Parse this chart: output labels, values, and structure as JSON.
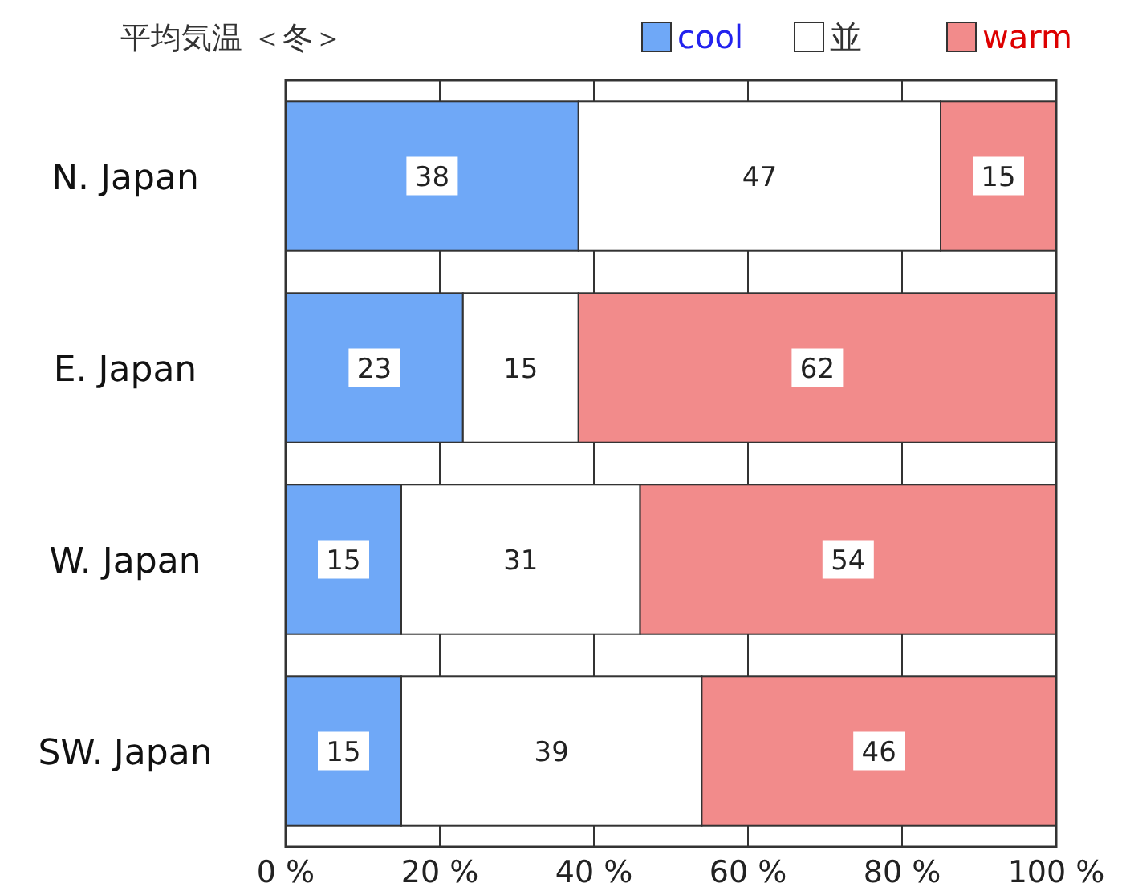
{
  "chart_data": {
    "type": "bar",
    "orientation": "horizontal",
    "stacked": true,
    "title": "平均気温 ＜冬＞",
    "categories": [
      "N. Japan",
      "E. Japan",
      "W. Japan",
      "SW. Japan"
    ],
    "series": [
      {
        "name": "cool",
        "color": "#6fa8f7",
        "values": [
          38,
          23,
          15,
          15
        ]
      },
      {
        "name": "並",
        "color": "#ffffff",
        "values": [
          47,
          15,
          31,
          39
        ]
      },
      {
        "name": "warm",
        "color": "#f28b8b",
        "values": [
          15,
          62,
          54,
          46
        ]
      }
    ],
    "xlim": [
      0,
      100
    ],
    "xticks": [
      {
        "value": 0,
        "label": "0 %"
      },
      {
        "value": 20,
        "label": "20 %"
      },
      {
        "value": 40,
        "label": "40 %"
      },
      {
        "value": 60,
        "label": "60 %"
      },
      {
        "value": 80,
        "label": "80 %"
      },
      {
        "value": 100,
        "label": "100 %"
      }
    ],
    "grid": "x",
    "legend": "top right",
    "data_labels": true
  }
}
